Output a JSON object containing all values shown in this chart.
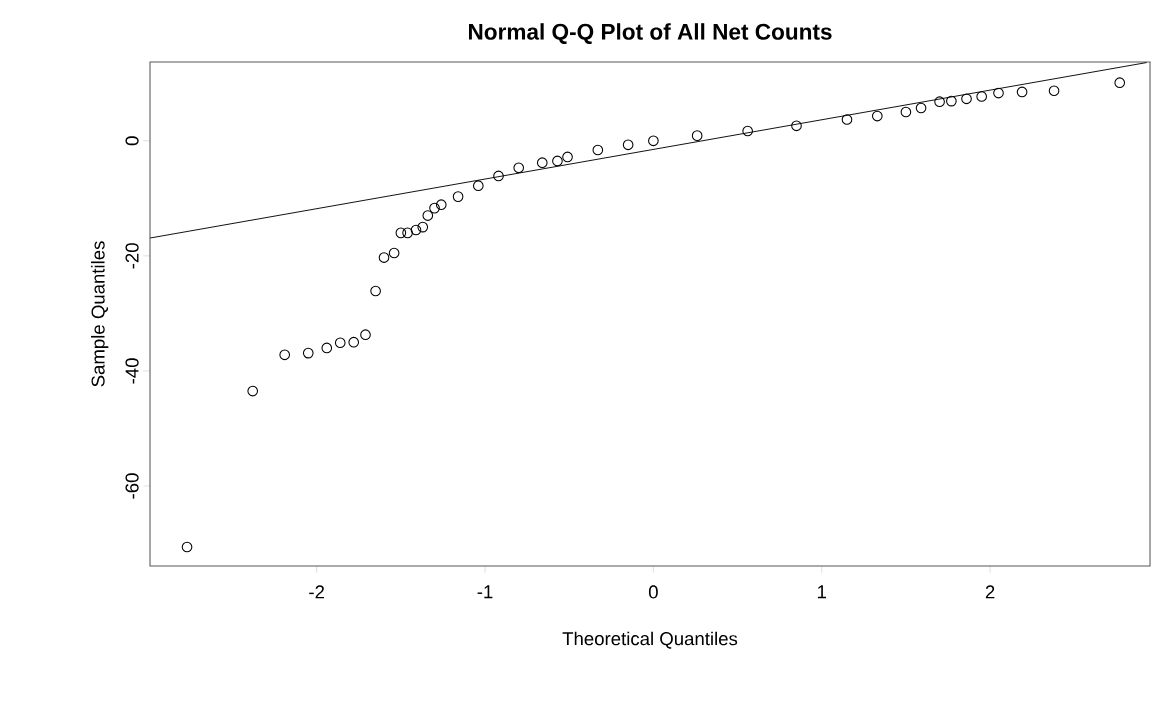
{
  "chart_data": {
    "type": "scatter",
    "title": "Normal Q-Q Plot of All Net Counts",
    "xlabel": "Theoretical Quantiles",
    "ylabel": "Sample Quantiles",
    "marker": "circle",
    "xlim": [
      -2.99,
      2.95
    ],
    "ylim": [
      -73.9,
      13.7
    ],
    "xticks": [
      -2,
      -1,
      0,
      1,
      2
    ],
    "yticks": [
      -60,
      -40,
      -20,
      0
    ],
    "series": [
      {
        "color": "#000000",
        "x": [
          -2.77,
          -2.38,
          -2.19,
          -2.05,
          -1.94,
          -1.86,
          -1.78,
          -1.71,
          -1.65,
          -1.6,
          -1.54,
          -1.5,
          -1.46,
          -1.41,
          -1.37,
          -1.34,
          -1.3,
          -1.26,
          -1.16,
          -1.04,
          -0.92,
          -0.8,
          -0.66,
          -0.57,
          -0.51,
          -0.33,
          -0.15,
          0,
          0.26,
          0.56,
          0.85,
          1.15,
          1.33,
          1.5,
          1.59,
          1.7,
          1.77,
          1.86,
          1.95,
          2.05,
          2.19,
          2.38,
          2.77
        ],
        "values": [
          -70.6,
          -43.5,
          -37.2,
          -36.9,
          -36.0,
          -35.1,
          -35.0,
          -33.7,
          -26.1,
          -20.3,
          -19.5,
          -16.0,
          -16.0,
          -15.5,
          -15.0,
          -13.0,
          -11.7,
          -11.1,
          -9.7,
          -7.8,
          -6.1,
          -4.7,
          -3.8,
          -3.5,
          -2.8,
          -1.6,
          -0.7,
          0,
          0.9,
          1.7,
          2.6,
          3.7,
          4.3,
          5.0,
          5.7,
          6.8,
          6.9,
          7.3,
          7.7,
          8.3,
          8.5,
          8.7,
          10.1
        ]
      },
      {
        "type": "line",
        "color": "#000000",
        "marker": "none",
        "x": [
          -2.99,
          2.93
        ],
        "values": [
          -16.9,
          13.6
        ]
      }
    ]
  }
}
